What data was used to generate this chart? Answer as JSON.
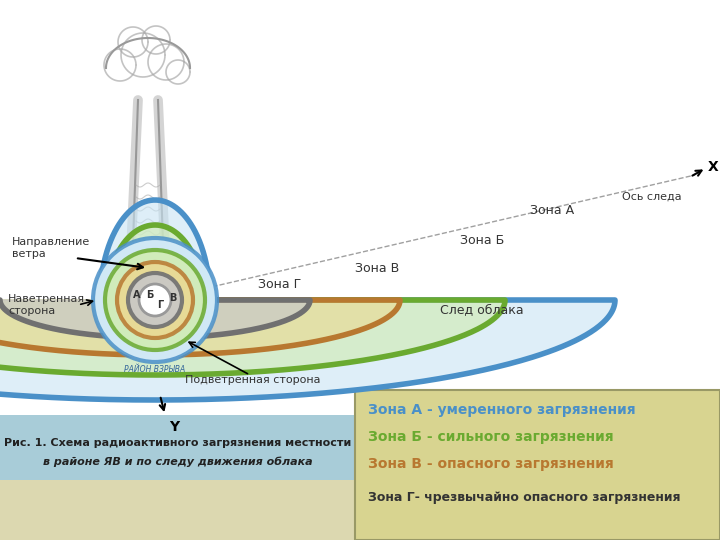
{
  "bg_color": "#f0f0e0",
  "zone_a_color": "#4a90c8",
  "zone_b_color": "#6aaa30",
  "zone_v_color": "#b87830",
  "zone_g_color": "#707070",
  "zone_a_fill": "#c8e4f4",
  "zone_b_fill": "#d0ecb0",
  "zone_v_fill": "#ecd890",
  "zone_g_fill": "#c8c8c8",
  "legend_bg": "#d8d490",
  "caption_bg": "#a8ccd8",
  "bottom_bg": "#dcd8b0",
  "white": "#ffffff",
  "text_zona_a": "Зона А",
  "text_zona_b": "Зона Б",
  "text_zona_v": "Зона В",
  "text_zona_g": "Зона Г",
  "text_x": "X",
  "text_y": "Y",
  "text_axis": "Ось следа",
  "text_cloud": "След облака",
  "text_wind_dir": "Направление\nветра",
  "text_navet": "Наветренная\nсторона",
  "text_podvet": "Подветренная сторона",
  "text_rayon": "РАЙОН ВЗРЫВА",
  "text_caption1": "Рис. 1. Схема радиоактивного загрязнения местности",
  "text_caption2": "в районе ЯВ и по следу движения облака",
  "legend_a": "Зона А - умеренного загрязнения",
  "legend_b": "Зона Б - сильного загрязнения",
  "legend_v": "Зона В - опасного загрязнения",
  "legend_g": "Зона Г- чрезвычайно опасного загрязнения",
  "label_A": "А",
  "label_B_small": "Б",
  "label_V": "В",
  "label_G": "Г"
}
